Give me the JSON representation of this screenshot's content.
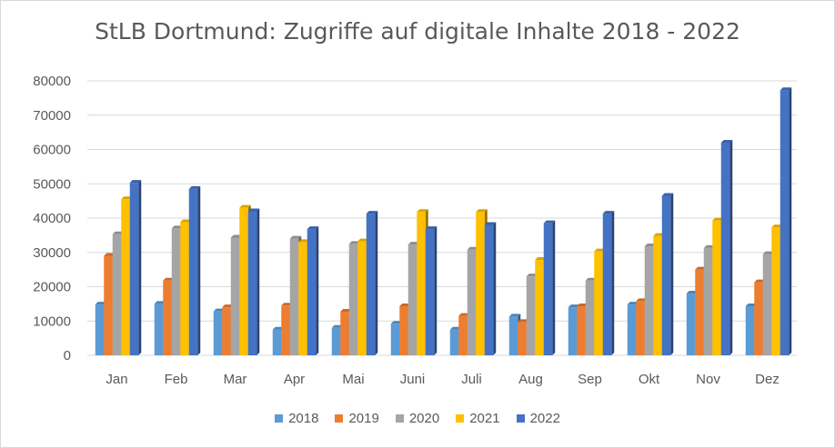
{
  "chart_data": {
    "type": "bar",
    "title": "StLB Dortmund: Zugriffe auf digitale Inhalte 2018 - 2022",
    "xlabel": "",
    "ylabel": "",
    "categories": [
      "Jan",
      "Feb",
      "Mar",
      "Apr",
      "Mai",
      "Juni",
      "Juli",
      "Aug",
      "Sep",
      "Okt",
      "Nov",
      "Dez"
    ],
    "ylim": [
      0,
      80000
    ],
    "yticks": [
      "0",
      "10000",
      "20000",
      "30000",
      "40000",
      "50000",
      "60000",
      "70000",
      "80000"
    ],
    "grid": true,
    "legend_position": "bottom",
    "series": [
      {
        "name": "2018",
        "color": "#5b9bd5",
        "values": [
          14800,
          15000,
          12800,
          7500,
          8000,
          9200,
          7500,
          11300,
          14000,
          14800,
          18000,
          14300
        ]
      },
      {
        "name": "2019",
        "color": "#ed7d31",
        "values": [
          29000,
          21800,
          14000,
          14500,
          12700,
          14300,
          11500,
          9700,
          14300,
          15800,
          25000,
          21300
        ]
      },
      {
        "name": "2020",
        "color": "#a5a5a5",
        "values": [
          35300,
          37000,
          34300,
          34000,
          32500,
          32300,
          30800,
          23000,
          21800,
          31800,
          31300,
          29500
        ]
      },
      {
        "name": "2021",
        "color": "#ffc000",
        "values": [
          45500,
          38800,
          43000,
          33000,
          33200,
          41800,
          41800,
          27800,
          30300,
          34800,
          39300,
          37300
        ]
      },
      {
        "name": "2022",
        "color": "#4472c4",
        "values": [
          50300,
          48500,
          42000,
          36800,
          41300,
          36800,
          38000,
          38500,
          41300,
          46500,
          62000,
          77300
        ]
      }
    ]
  }
}
